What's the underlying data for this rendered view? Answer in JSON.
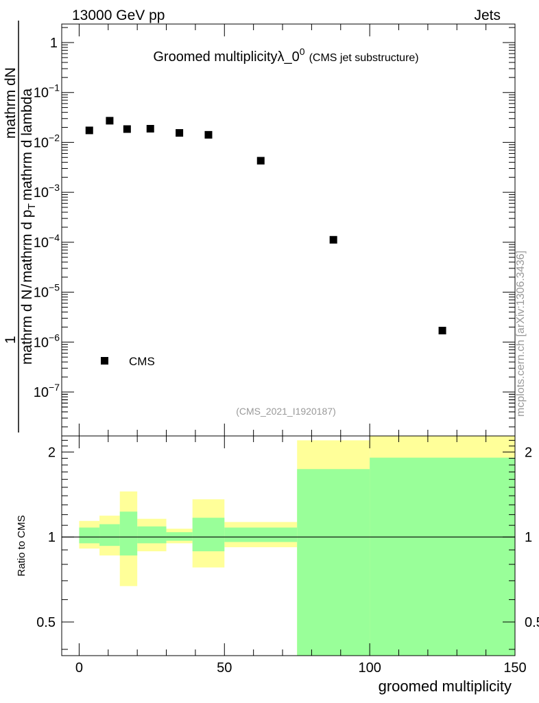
{
  "header": {
    "left": "13000 GeV pp",
    "right": "Jets"
  },
  "main_plot": {
    "title": "Groomed multiplicity",
    "title_symbol": "λ_0",
    "title_symbol_sup": "0",
    "subtitle": "(CMS jet substructure)",
    "ylabel": "1/(mathrm d N) mathrm dN/(mathrm d p_T mathrm d lambda)",
    "ylabel_parts": {
      "numerator_1": "1",
      "denominator_1": "mathrm d N",
      "slash": "/",
      "middle": "mathrm d p",
      "middle_sub": "T",
      "middle_2": "mathrm d lambda",
      "numerator_2": "mathrm dN",
      "denominator_2": "mathrm d p",
      "denominator_2_sub": "T",
      "denominator_2_end": "mathrm d lambda"
    },
    "analysis_id": "(CMS_2021_I1920187)",
    "legend": {
      "label": "CMS",
      "position": "bottom-left"
    },
    "side_label": "mcplots.cern.ch [arXiv:1306.3436]"
  },
  "ratio_plot": {
    "ylabel": "Ratio to CMS",
    "xlabel": "groomed multiplicity"
  },
  "colors": {
    "green_band": "#99ff99",
    "yellow_band": "#ffff99",
    "marker": "#000000"
  },
  "chart_data": [
    {
      "type": "scatter",
      "title": "Groomed multiplicity λ_0^0 (CMS jet substructure)",
      "xlabel": "groomed multiplicity",
      "ylabel": "1/(mathrm d N) mathrm dN/(mathrm d p_T mathrm d lambda)",
      "log_y": true,
      "xlim": [
        -6,
        150
      ],
      "ylim": [
        1e-07,
        1
      ],
      "y_ticks": [
        {
          "value": 1,
          "label": "1"
        },
        {
          "value": 0.1,
          "label": "10",
          "exp": "−1"
        },
        {
          "value": 0.01,
          "label": "10",
          "exp": "−2"
        },
        {
          "value": 0.001,
          "label": "10",
          "exp": "−3"
        },
        {
          "value": 0.0001,
          "label": "10",
          "exp": "−4"
        },
        {
          "value": 1e-05,
          "label": "10",
          "exp": "−5"
        },
        {
          "value": 1e-06,
          "label": "10",
          "exp": "−6"
        },
        {
          "value": 1e-07,
          "label": "10",
          "exp": "−7"
        }
      ],
      "series": [
        {
          "name": "CMS",
          "x": [
            3.5,
            10.5,
            16.5,
            24.5,
            34.5,
            44.5,
            62.5,
            87.5,
            125
          ],
          "y": [
            0.0174,
            0.0272,
            0.0185,
            0.0188,
            0.0155,
            0.0142,
            0.0043,
            0.000112,
            1.7e-06
          ]
        }
      ]
    },
    {
      "type": "area",
      "ylabel": "Ratio to CMS",
      "xlabel": "groomed multiplicity",
      "xlim": [
        -6,
        150
      ],
      "ylim": [
        0.38,
        2.28
      ],
      "x_ticks": [
        0,
        50,
        100,
        150
      ],
      "y_ticks": [
        0.5,
        1,
        2
      ],
      "reference_line": 1,
      "bins": [
        {
          "lo": 0,
          "hi": 7,
          "green": [
            0.95,
            1.08
          ],
          "yellow": [
            0.91,
            1.14
          ]
        },
        {
          "lo": 7,
          "hi": 14,
          "green": [
            0.93,
            1.11
          ],
          "yellow": [
            0.86,
            1.19
          ]
        },
        {
          "lo": 14,
          "hi": 20,
          "green": [
            0.86,
            1.23
          ],
          "yellow": [
            0.67,
            1.45
          ]
        },
        {
          "lo": 20,
          "hi": 30,
          "green": [
            0.95,
            1.09
          ],
          "yellow": [
            0.89,
            1.16
          ]
        },
        {
          "lo": 30,
          "hi": 39,
          "green": [
            0.97,
            1.04
          ],
          "yellow": [
            0.95,
            1.07
          ]
        },
        {
          "lo": 39,
          "hi": 50,
          "green": [
            0.89,
            1.17
          ],
          "yellow": [
            0.78,
            1.36
          ]
        },
        {
          "lo": 50,
          "hi": 75,
          "green": [
            0.96,
            1.08
          ],
          "yellow": [
            0.92,
            1.13
          ]
        },
        {
          "lo": 75,
          "hi": 100,
          "green": [
            0.38,
            1.74
          ],
          "yellow": [
            0.38,
            2.2
          ]
        },
        {
          "lo": 100,
          "hi": 150,
          "green": [
            0.38,
            1.91
          ],
          "yellow": [
            0.38,
            2.28
          ]
        }
      ]
    }
  ]
}
